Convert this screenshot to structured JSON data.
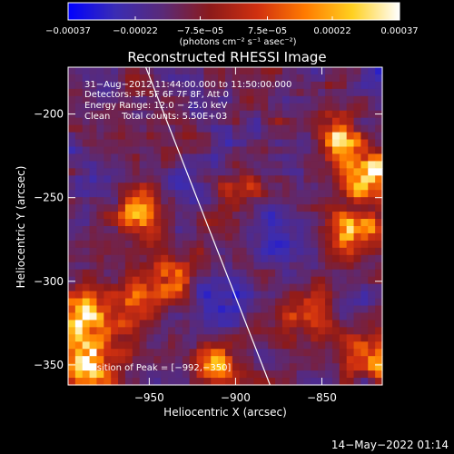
{
  "chart_data": {
    "type": "heatmap",
    "title": "Reconstructed RHESSI Image",
    "xlabel": "Heliocentric X (arcsec)",
    "ylabel": "Heliocentric Y (arcsec)",
    "xlim": [
      -997,
      -815
    ],
    "ylim": [
      -362,
      -172
    ],
    "x_ticks": [
      -950,
      -900,
      -850
    ],
    "y_ticks": [
      -200,
      -250,
      -300,
      -350
    ],
    "x_tick_labels": [
      "−950",
      "−900",
      "−850"
    ],
    "y_tick_labels": [
      "−200",
      "−250",
      "−300",
      "−350"
    ],
    "colorbar": {
      "range": [
        -0.00037,
        0.00037
      ],
      "tick_values": [
        -0.00037,
        -0.00022,
        -7.5e-05,
        7.5e-05,
        0.00022,
        0.00037
      ],
      "tick_labels": [
        "−0.00037",
        "−0.00022",
        "−7.5e−05",
        "7.5e−05",
        "0.00022",
        "0.00037"
      ],
      "unit_label": "(photons cm⁻² s⁻¹ asec⁻²)",
      "colors": [
        "#0000ff",
        "#3a2cb4",
        "#5a2a78",
        "#8c1a1a",
        "#d03010",
        "#ff7a00",
        "#ffd020",
        "#ffffff"
      ]
    },
    "annotations": [
      "31−Aug−2012 11:44:00.000 to 11:50:00.000",
      "Detectors: 3F 5F 6F 7F 8F, Att 0",
      "Energy Range: 12.0 − 25.0 keV",
      "Clean    Total counts: 5.50E+03"
    ],
    "peak_label": "Position of Peak = [−992,−350]",
    "limb_line": [
      [
        -952,
        -172
      ],
      [
        -880,
        -362
      ]
    ],
    "bright_regions": [
      {
        "x": -985,
        "y": -350,
        "level": 1.0
      },
      {
        "x": -990,
        "y": -320,
        "level": 0.8
      },
      {
        "x": -820,
        "y": -240,
        "level": 0.85
      },
      {
        "x": -830,
        "y": -270,
        "level": 0.75
      },
      {
        "x": -840,
        "y": -215,
        "level": 0.7
      },
      {
        "x": -955,
        "y": -260,
        "level": 0.55
      },
      {
        "x": -935,
        "y": -300,
        "level": 0.55
      },
      {
        "x": -900,
        "y": -250,
        "level": 0.45
      },
      {
        "x": -960,
        "y": -315,
        "level": 0.5
      },
      {
        "x": -860,
        "y": -320,
        "level": 0.45
      },
      {
        "x": -820,
        "y": -345,
        "level": 0.55
      },
      {
        "x": -910,
        "y": -350,
        "level": 0.5
      }
    ],
    "dim_regions": [
      {
        "x": -905,
        "y": -310,
        "level": 0.7
      },
      {
        "x": -880,
        "y": -270,
        "level": 0.5
      },
      {
        "x": -925,
        "y": -240,
        "level": 0.4
      }
    ]
  },
  "footer": {
    "timestamp": "14−May−2022 01:14"
  }
}
